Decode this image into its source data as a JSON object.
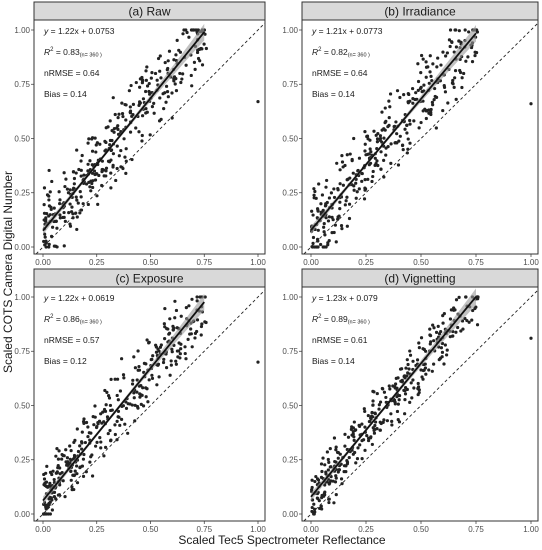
{
  "figure": {
    "xlabel": "Scaled Tec5 Spectrometer Reflectance",
    "ylabel": "Scaled COTS Camera Digital Number"
  },
  "chart_data": [
    {
      "type": "scatter",
      "panel": "(a) Raw",
      "title": "(a) Raw",
      "xlim": [
        0,
        1
      ],
      "ylim": [
        0,
        1
      ],
      "x_ticks": [
        "0.00",
        "0.25",
        "0.50",
        "0.75",
        "1.00"
      ],
      "y_ticks": [
        "0.00",
        "0.25",
        "0.50",
        "0.75",
        "1.00"
      ],
      "fit": {
        "slope": 1.22,
        "intercept": 0.0753,
        "x_range": [
          0.0,
          0.75
        ]
      },
      "reference_line": "1:1 dashed",
      "annotations": {
        "equation": "1.22x + 0.0753",
        "r2_value": "0.83",
        "n": "(n= 360 )",
        "nrmse": "nRMSE = 0.64",
        "bias": "Bias = 0.14"
      },
      "outlier": [
        1.0,
        0.67
      ],
      "n_points": 360,
      "noise": 0.085,
      "seed": 11
    },
    {
      "type": "scatter",
      "panel": "(b) Irradiance",
      "title": "(b) Irradiance",
      "xlim": [
        0,
        1
      ],
      "ylim": [
        0,
        1
      ],
      "x_ticks": [
        "0.00",
        "0.25",
        "0.50",
        "0.75",
        "1.00"
      ],
      "y_ticks": [
        "0.00",
        "0.25",
        "0.50",
        "0.75",
        "1.00"
      ],
      "fit": {
        "slope": 1.21,
        "intercept": 0.0773,
        "x_range": [
          0.0,
          0.75
        ]
      },
      "reference_line": "1:1 dashed",
      "annotations": {
        "equation": "1.21x + 0.0773",
        "r2_value": "0.82",
        "n": "(n= 360 )",
        "nrmse": "nRMSE = 0.64",
        "bias": "Bias = 0.14"
      },
      "outlier": [
        1.0,
        0.66
      ],
      "n_points": 360,
      "noise": 0.088,
      "seed": 23
    },
    {
      "type": "scatter",
      "panel": "(c) Exposure",
      "title": "(c) Exposure",
      "xlim": [
        0,
        1
      ],
      "ylim": [
        0,
        1
      ],
      "x_ticks": [
        "0.00",
        "0.25",
        "0.50",
        "0.75",
        "1.00"
      ],
      "y_ticks": [
        "0.00",
        "0.25",
        "0.50",
        "0.75",
        "1.00"
      ],
      "fit": {
        "slope": 1.22,
        "intercept": 0.0619,
        "x_range": [
          0.0,
          0.75
        ]
      },
      "reference_line": "1:1 dashed",
      "annotations": {
        "equation": "1.22x + 0.0619",
        "r2_value": "0.86",
        "n": "(n= 360 )",
        "nrmse": "nRMSE = 0.57",
        "bias": "Bias = 0.12"
      },
      "outlier": [
        1.0,
        0.7
      ],
      "n_points": 360,
      "noise": 0.075,
      "seed": 37
    },
    {
      "type": "scatter",
      "panel": "(d) Vignetting",
      "title": "(d) Vignetting",
      "xlim": [
        0,
        1
      ],
      "ylim": [
        0,
        1
      ],
      "x_ticks": [
        "0.00",
        "0.25",
        "0.50",
        "0.75",
        "1.00"
      ],
      "y_ticks": [
        "0.00",
        "0.25",
        "0.50",
        "0.75",
        "1.00"
      ],
      "fit": {
        "slope": 1.23,
        "intercept": 0.079,
        "x_range": [
          0.0,
          0.75
        ]
      },
      "reference_line": "1:1 dashed",
      "annotations": {
        "equation": "1.23x + 0.079",
        "r2_value": "0.89",
        "n": "(n= 360 )",
        "nrmse": "nRMSE = 0.61",
        "bias": "Bias = 0.14"
      },
      "outlier": [
        1.0,
        0.81
      ],
      "n_points": 360,
      "noise": 0.065,
      "seed": 53
    }
  ]
}
